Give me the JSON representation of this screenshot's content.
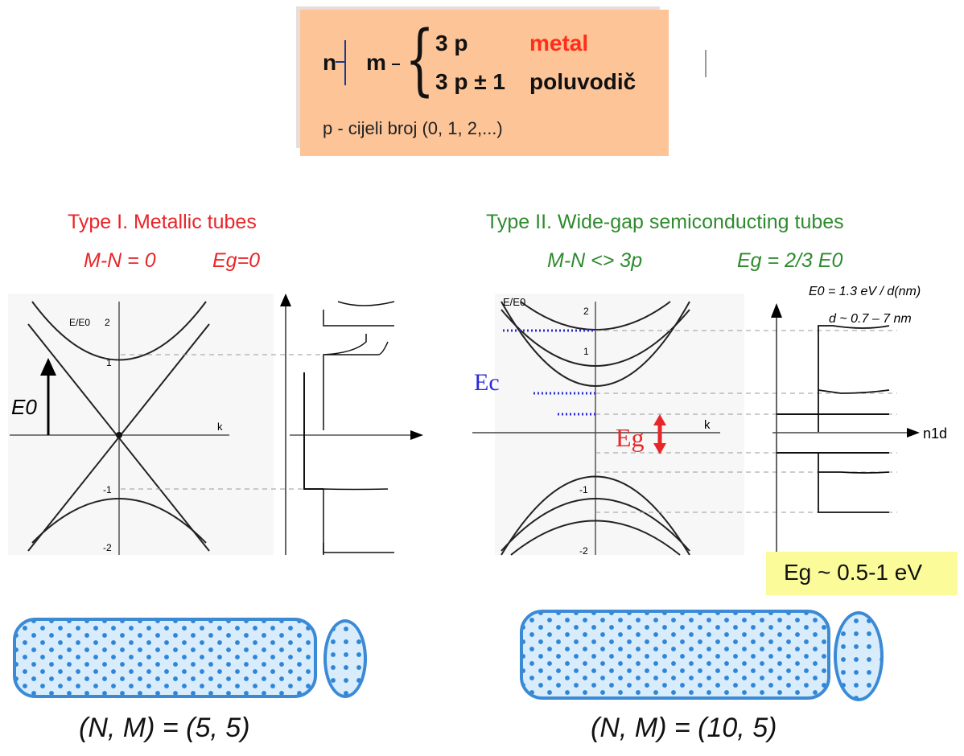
{
  "rule": {
    "n": "n",
    "m": "m",
    "case1_expr": "3 p",
    "case1_label": "metal",
    "case2_expr": "3 p ± 1",
    "case2_label": "poluvodič",
    "note": "p - cijeli broj (0, 1, 2,...)"
  },
  "left": {
    "title": "Type I. Metallic tubes",
    "cond": "M-N = 0",
    "eg_cond": "Eg=0",
    "axis_label": "E/E0",
    "e0_label": "E0",
    "k_label": "k",
    "ticks": [
      "2",
      "1",
      "-1",
      "-2"
    ],
    "caption": "(N, M) = (5, 5)"
  },
  "right": {
    "title": "Type II. Wide-gap semiconducting tubes",
    "cond": "M-N <> 3p",
    "eg_cond": "Eg = 2/3 E0",
    "axis_label": "E/E0",
    "ec_label": "Ec",
    "eg_label": "Eg",
    "k_label": "k",
    "n1d_label": "n1d",
    "note1": "E0 = 1.3 eV / d(nm)",
    "note2": "d ~ 0.7   – 7 nm",
    "ticks": [
      "2",
      "1",
      "-1",
      "-2"
    ],
    "eg_value": "Eg ~ 0.5-1 eV",
    "caption": "(N, M) = (10, 5)"
  },
  "colors": {
    "red": "#e8262a",
    "green": "#2e8b2e",
    "box": "#fcc497",
    "highlight": "#fbfb9a",
    "tube": "#3a8ad6",
    "ec": "#2a2ad8"
  }
}
